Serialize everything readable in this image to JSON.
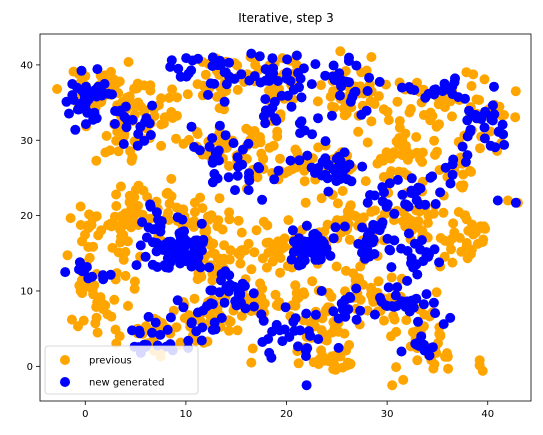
{
  "chart_data": {
    "type": "scatter",
    "title": "Iterative, step 3",
    "xlabel": "",
    "ylabel": "",
    "xlim": [
      -4.5,
      44.3
    ],
    "ylim": [
      -4.6,
      44.1
    ],
    "xticks": [
      0,
      10,
      20,
      30,
      40
    ],
    "yticks": [
      0,
      10,
      20,
      30,
      40
    ],
    "grid": false,
    "legend": {
      "placement": "lower-left"
    },
    "series": [
      {
        "name": "previous",
        "color": "#FFA500",
        "clusters": [
          {
            "cx": 1.5,
            "cy": 36.5,
            "sx": 1.8,
            "sy": 1.6,
            "n": 45
          },
          {
            "cx": 6.0,
            "cy": 34.0,
            "sx": 2.0,
            "sy": 1.8,
            "n": 35
          },
          {
            "cx": 4.0,
            "cy": 30.5,
            "sx": 1.5,
            "sy": 1.5,
            "n": 20
          },
          {
            "cx": 13.0,
            "cy": 38.0,
            "sx": 1.8,
            "sy": 1.5,
            "n": 30
          },
          {
            "cx": 18.5,
            "cy": 37.5,
            "sx": 2.0,
            "sy": 2.0,
            "n": 35
          },
          {
            "cx": 26.5,
            "cy": 36.5,
            "sx": 1.8,
            "sy": 2.3,
            "n": 40
          },
          {
            "cx": 34.0,
            "cy": 35.5,
            "sx": 2.0,
            "sy": 1.8,
            "n": 35
          },
          {
            "cx": 39.5,
            "cy": 33.5,
            "sx": 1.5,
            "sy": 2.0,
            "n": 25
          },
          {
            "cx": 13.0,
            "cy": 29.5,
            "sx": 2.0,
            "sy": 1.8,
            "n": 35
          },
          {
            "cx": 18.0,
            "cy": 27.5,
            "sx": 1.8,
            "sy": 2.0,
            "n": 30
          },
          {
            "cx": 24.5,
            "cy": 26.5,
            "sx": 2.0,
            "sy": 2.0,
            "n": 35
          },
          {
            "cx": 31.5,
            "cy": 28.5,
            "sx": 2.0,
            "sy": 2.0,
            "n": 35
          },
          {
            "cx": 37.5,
            "cy": 26.0,
            "sx": 1.5,
            "sy": 2.0,
            "n": 20
          },
          {
            "cx": 2.5,
            "cy": 18.5,
            "sx": 2.0,
            "sy": 1.8,
            "n": 45
          },
          {
            "cx": 6.5,
            "cy": 21.5,
            "sx": 1.8,
            "sy": 1.5,
            "n": 25
          },
          {
            "cx": 11.5,
            "cy": 19.5,
            "sx": 2.2,
            "sy": 2.0,
            "n": 35
          },
          {
            "cx": 13.0,
            "cy": 14.0,
            "sx": 2.0,
            "sy": 2.0,
            "n": 40
          },
          {
            "cx": 20.0,
            "cy": 15.5,
            "sx": 2.0,
            "sy": 2.0,
            "n": 40
          },
          {
            "cx": 26.0,
            "cy": 19.0,
            "sx": 2.0,
            "sy": 2.0,
            "n": 40
          },
          {
            "cx": 33.0,
            "cy": 19.0,
            "sx": 2.2,
            "sy": 1.8,
            "n": 45
          },
          {
            "cx": 38.5,
            "cy": 17.5,
            "sx": 1.5,
            "sy": 1.8,
            "n": 25
          },
          {
            "cx": 1.5,
            "cy": 9.5,
            "sx": 1.6,
            "sy": 2.5,
            "n": 35
          },
          {
            "cx": 7.0,
            "cy": 4.0,
            "sx": 2.5,
            "sy": 1.5,
            "n": 35
          },
          {
            "cx": 12.0,
            "cy": 6.5,
            "sx": 2.0,
            "sy": 1.8,
            "n": 30
          },
          {
            "cx": 18.0,
            "cy": 8.5,
            "sx": 2.0,
            "sy": 2.0,
            "n": 35
          },
          {
            "cx": 23.5,
            "cy": 6.5,
            "sx": 2.2,
            "sy": 2.0,
            "n": 40
          },
          {
            "cx": 24.5,
            "cy": 1.0,
            "sx": 2.0,
            "sy": 1.0,
            "n": 25
          },
          {
            "cx": 28.5,
            "cy": 10.0,
            "sx": 2.0,
            "sy": 2.0,
            "n": 35
          },
          {
            "cx": 33.0,
            "cy": 5.5,
            "sx": 1.8,
            "sy": 2.0,
            "n": 25
          },
          {
            "cx": 34.5,
            "cy": 1.5,
            "sx": 1.5,
            "sy": 1.0,
            "n": 15
          }
        ],
        "points": [
          [
            -2.8,
            36.8
          ],
          [
            39.2,
            0.8
          ],
          [
            39.5,
            -0.6
          ],
          [
            31.6,
            -1.8
          ],
          [
            30.5,
            -2.5
          ],
          [
            16.5,
            0.5
          ],
          [
            5.2,
            5.0
          ],
          [
            -0.3,
            12.5
          ],
          [
            43.0,
            21.7
          ],
          [
            42.0,
            22.0
          ],
          [
            39.5,
            16.5
          ],
          [
            4.0,
            12.0
          ]
        ]
      },
      {
        "name": "new generated",
        "color": "#0000FF",
        "clusters": [
          {
            "cx": 0.6,
            "cy": 35.2,
            "sx": 1.2,
            "sy": 1.5,
            "n": 45
          },
          {
            "cx": 4.5,
            "cy": 33.5,
            "sx": 1.0,
            "sy": 1.0,
            "n": 8
          },
          {
            "cx": 5.5,
            "cy": 31.0,
            "sx": 1.5,
            "sy": 1.2,
            "n": 10
          },
          {
            "cx": 9.5,
            "cy": 39.5,
            "sx": 1.0,
            "sy": 1.0,
            "n": 10
          },
          {
            "cx": 14.0,
            "cy": 38.5,
            "sx": 1.5,
            "sy": 1.2,
            "n": 15
          },
          {
            "cx": 19.5,
            "cy": 38.5,
            "sx": 1.6,
            "sy": 1.3,
            "n": 30
          },
          {
            "cx": 19.5,
            "cy": 33.5,
            "sx": 1.8,
            "sy": 1.5,
            "n": 20
          },
          {
            "cx": 26.5,
            "cy": 37.5,
            "sx": 1.2,
            "sy": 2.2,
            "n": 25
          },
          {
            "cx": 35.0,
            "cy": 36.5,
            "sx": 1.8,
            "sy": 1.2,
            "n": 20
          },
          {
            "cx": 40.0,
            "cy": 32.0,
            "sx": 1.3,
            "sy": 1.8,
            "n": 25
          },
          {
            "cx": 13.5,
            "cy": 28.5,
            "sx": 1.8,
            "sy": 1.6,
            "n": 20
          },
          {
            "cx": 16.0,
            "cy": 25.0,
            "sx": 1.5,
            "sy": 1.4,
            "n": 15
          },
          {
            "cx": 25.0,
            "cy": 26.5,
            "sx": 2.0,
            "sy": 1.8,
            "n": 35
          },
          {
            "cx": 31.5,
            "cy": 22.5,
            "sx": 2.0,
            "sy": 1.5,
            "n": 25
          },
          {
            "cx": 36.0,
            "cy": 26.5,
            "sx": 1.0,
            "sy": 1.5,
            "n": 10
          },
          {
            "cx": 9.2,
            "cy": 15.5,
            "sx": 1.5,
            "sy": 1.6,
            "n": 80
          },
          {
            "cx": 6.5,
            "cy": 19.0,
            "sx": 1.5,
            "sy": 1.0,
            "n": 10
          },
          {
            "cx": 0.5,
            "cy": 12.5,
            "sx": 1.2,
            "sy": 0.8,
            "n": 10
          },
          {
            "cx": 22.5,
            "cy": 15.5,
            "sx": 1.2,
            "sy": 1.3,
            "n": 50
          },
          {
            "cx": 29.0,
            "cy": 17.0,
            "sx": 1.8,
            "sy": 1.8,
            "n": 25
          },
          {
            "cx": 33.0,
            "cy": 14.5,
            "sx": 1.6,
            "sy": 1.5,
            "n": 20
          },
          {
            "cx": 14.5,
            "cy": 10.0,
            "sx": 1.2,
            "sy": 1.5,
            "n": 25
          },
          {
            "cx": 12.0,
            "cy": 5.5,
            "sx": 1.8,
            "sy": 1.0,
            "n": 15
          },
          {
            "cx": 7.5,
            "cy": 4.0,
            "sx": 2.0,
            "sy": 1.0,
            "n": 20
          },
          {
            "cx": 20.5,
            "cy": 5.0,
            "sx": 2.5,
            "sy": 1.8,
            "n": 30
          },
          {
            "cx": 26.5,
            "cy": 8.0,
            "sx": 1.5,
            "sy": 1.5,
            "n": 15
          },
          {
            "cx": 32.5,
            "cy": 7.5,
            "sx": 1.6,
            "sy": 2.0,
            "n": 25
          },
          {
            "cx": 33.5,
            "cy": 2.5,
            "sx": 1.0,
            "sy": 0.8,
            "n": 10
          }
        ],
        "points": [
          [
            42.8,
            21.7
          ],
          [
            41.0,
            22.0
          ],
          [
            22.0,
            -2.5
          ],
          [
            -2.0,
            12.5
          ],
          [
            23.5,
            10.0
          ],
          [
            30.0,
            8.0
          ],
          [
            16.5,
            41.5
          ]
        ]
      }
    ]
  }
}
